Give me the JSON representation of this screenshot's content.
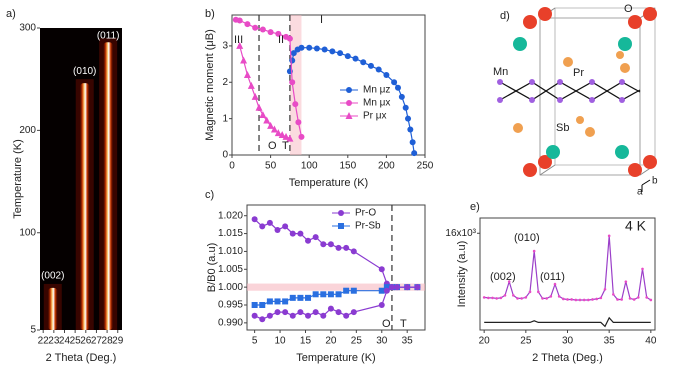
{
  "chart_data": [
    {
      "type": "heatmap",
      "panel": "a)",
      "xlabel": "2 Theta (Deg.)",
      "ylabel": "Temperature (K)",
      "xlim": [
        21.7,
        29.4
      ],
      "xticks": [
        22,
        23,
        24,
        25,
        26,
        27,
        28,
        29
      ],
      "ylim": [
        5,
        300
      ],
      "yticks": [
        5,
        100,
        200,
        300
      ],
      "peaks": [
        {
          "label": "(002)",
          "x": 22.9,
          "top": 50
        },
        {
          "label": "(010)",
          "x": 25.9,
          "top": 250
        },
        {
          "label": "(011)",
          "x": 28.1,
          "top": 290
        }
      ]
    },
    {
      "type": "line",
      "panel": "b)",
      "xlabel": "Temperature (K)",
      "ylabel": "Magnetic moment (μB)",
      "xlim": [
        0,
        250
      ],
      "xticks": [
        0,
        50,
        100,
        150,
        200,
        250
      ],
      "ylim": [
        0,
        3.85
      ],
      "yticks": [
        0,
        1,
        2,
        3
      ],
      "vlines": [
        35,
        75
      ],
      "shade": [
        75,
        90
      ],
      "annotations": [
        "III",
        "II",
        "I",
        "O",
        "T"
      ],
      "legend": "right",
      "series": [
        {
          "name": "Mn μz",
          "color": "#1f5fd6",
          "marker": "circle",
          "x": [
            75,
            78,
            80,
            85,
            90,
            100,
            110,
            120,
            130,
            140,
            150,
            160,
            170,
            180,
            190,
            200,
            210,
            215,
            220,
            225,
            228,
            231,
            234,
            236
          ],
          "values": [
            2.3,
            2.6,
            2.8,
            2.9,
            2.95,
            2.95,
            2.93,
            2.9,
            2.85,
            2.8,
            2.72,
            2.65,
            2.55,
            2.45,
            2.35,
            2.2,
            2.0,
            1.85,
            1.6,
            1.3,
            1.0,
            0.7,
            0.35,
            0.05
          ]
        },
        {
          "name": "Mn μx",
          "color": "#e84bc6",
          "marker": "circle",
          "x": [
            5,
            10,
            20,
            30,
            40,
            50,
            60,
            70,
            75,
            78,
            82,
            86,
            90
          ],
          "values": [
            3.72,
            3.7,
            3.6,
            3.5,
            3.45,
            3.38,
            3.33,
            3.25,
            3.2,
            2.0,
            1.4,
            0.9,
            0.5
          ]
        },
        {
          "name": "Pr μx",
          "color": "#e84bc6",
          "marker": "triangle",
          "x": [
            10,
            15,
            20,
            25,
            30,
            35,
            40,
            45,
            50,
            55,
            60,
            65,
            70,
            75
          ],
          "values": [
            3.0,
            2.6,
            2.2,
            1.9,
            1.6,
            1.3,
            1.1,
            0.95,
            0.8,
            0.7,
            0.6,
            0.55,
            0.5,
            0.45
          ]
        }
      ]
    },
    {
      "type": "line",
      "panel": "c)",
      "xlabel": "Temperature (K)",
      "ylabel": "B/B0 (a.u)",
      "xlim": [
        3.5,
        38.5
      ],
      "xticks": [
        5,
        10,
        15,
        20,
        25,
        30,
        35
      ],
      "ylim": [
        0.988,
        1.023
      ],
      "yticks": [
        {
          "value": 0.99,
          "label": "0.990"
        },
        0.995,
        {
          "value": 1.0,
          "label": "1.000"
        },
        1.005,
        {
          "value": 1.01,
          "label": "1.010"
        },
        1.015,
        {
          "value": 1.02,
          "label": "1.020"
        }
      ],
      "vlines": [
        32
      ],
      "hband": [
        0.999,
        1.001
      ],
      "annotations": [
        "O",
        "T"
      ],
      "legend": "top",
      "x": [
        5,
        6.5,
        8,
        9.5,
        11,
        12.5,
        14,
        15.5,
        17,
        18.5,
        20,
        21.5,
        23,
        24.5,
        30,
        31,
        32,
        33,
        35,
        37
      ],
      "series": [
        {
          "name": "Pr-O",
          "color": "#8a3bd1",
          "marker": "circle",
          "values": [
            1.019,
            1.017,
            1.018,
            1.016,
            1.017,
            1.015,
            1.015,
            1.013,
            1.014,
            1.012,
            1.012,
            1.011,
            1.011,
            1.01,
            1.005,
            1.001,
            1.0,
            1.0,
            1.0,
            1.0
          ]
        },
        {
          "name": "Pr-Sb",
          "color": "#2a6fe0",
          "marker": "square",
          "values": [
            0.995,
            0.995,
            0.996,
            0.996,
            0.996,
            0.997,
            0.997,
            0.997,
            0.998,
            0.998,
            0.998,
            0.998,
            0.999,
            0.999,
            0.999,
            1.0,
            1.0,
            1.0,
            1.0,
            1.0
          ]
        },
        {
          "color": "#8a3bd1",
          "marker": "circle",
          "values": [
            0.992,
            0.991,
            0.992,
            0.993,
            0.993,
            0.992,
            0.993,
            0.992,
            0.993,
            0.992,
            0.994,
            0.993,
            0.992,
            0.993,
            0.995,
            0.999,
            1.0,
            1.0,
            1.0,
            1.0
          ]
        }
      ]
    },
    {
      "type": "line",
      "panel": "e)",
      "xlabel": "2 Theta (Deg.)",
      "ylabel": "Intensity (a.u)",
      "xlim": [
        19.5,
        40.5
      ],
      "xticks": [
        20,
        25,
        30,
        35,
        40
      ],
      "ylim": [
        -3,
        19
      ],
      "yticks": [
        {
          "value": 16,
          "label": "16x10³"
        }
      ],
      "annotations": [
        "(002)",
        "(010)",
        "(011)",
        "4 K"
      ],
      "x": [
        20,
        20.5,
        21,
        21.5,
        22,
        22.5,
        23,
        23.5,
        24,
        24.5,
        25,
        25.5,
        26,
        26.5,
        27,
        27.5,
        28,
        28.5,
        29,
        29.5,
        30,
        30.5,
        31,
        31.5,
        32,
        32.5,
        33,
        33.5,
        34,
        34.5,
        35,
        35.5,
        36,
        36.5,
        37,
        37.5,
        38,
        38.5,
        39,
        39.5,
        40
      ],
      "series": [
        {
          "color": "#9b3fc9",
          "marker": "dot",
          "values": [
            3.4,
            3.3,
            3.3,
            3.2,
            3.3,
            3.8,
            6.5,
            3.8,
            3.2,
            3.2,
            3.4,
            4.5,
            12.5,
            4.5,
            3.2,
            3.2,
            3.6,
            6,
            3.6,
            3.1,
            3,
            3,
            2.9,
            2.9,
            2.9,
            2.9,
            3,
            3.1,
            3.3,
            5,
            15.5,
            4,
            3,
            3,
            6.5,
            3.2,
            3,
            3.4,
            9,
            3.4,
            2.9
          ]
        },
        {
          "color": "#222222",
          "marker": "none",
          "values": [
            -1.5,
            -1.5,
            -1.5,
            -1.5,
            -1.5,
            -1.5,
            -1.5,
            -1.5,
            -1.5,
            -1.5,
            -1.5,
            -1.5,
            -1.2,
            -1.5,
            -1.5,
            -1.5,
            -1.5,
            -1.5,
            -1.5,
            -1.5,
            -1.5,
            -1.5,
            -1.5,
            -1.5,
            -1.5,
            -1.5,
            -1.5,
            -1.5,
            -1.5,
            -2.3,
            -0.6,
            -1.5,
            -1.5,
            -1.5,
            -1.5,
            -1.5,
            -1.5,
            -1.5,
            -1.5,
            -1.5,
            -1.5
          ]
        }
      ]
    }
  ],
  "diagram": {
    "panel": "d)",
    "labels": [
      "O",
      "Mn",
      "Pr",
      "Sb",
      "b",
      "a"
    ]
  }
}
